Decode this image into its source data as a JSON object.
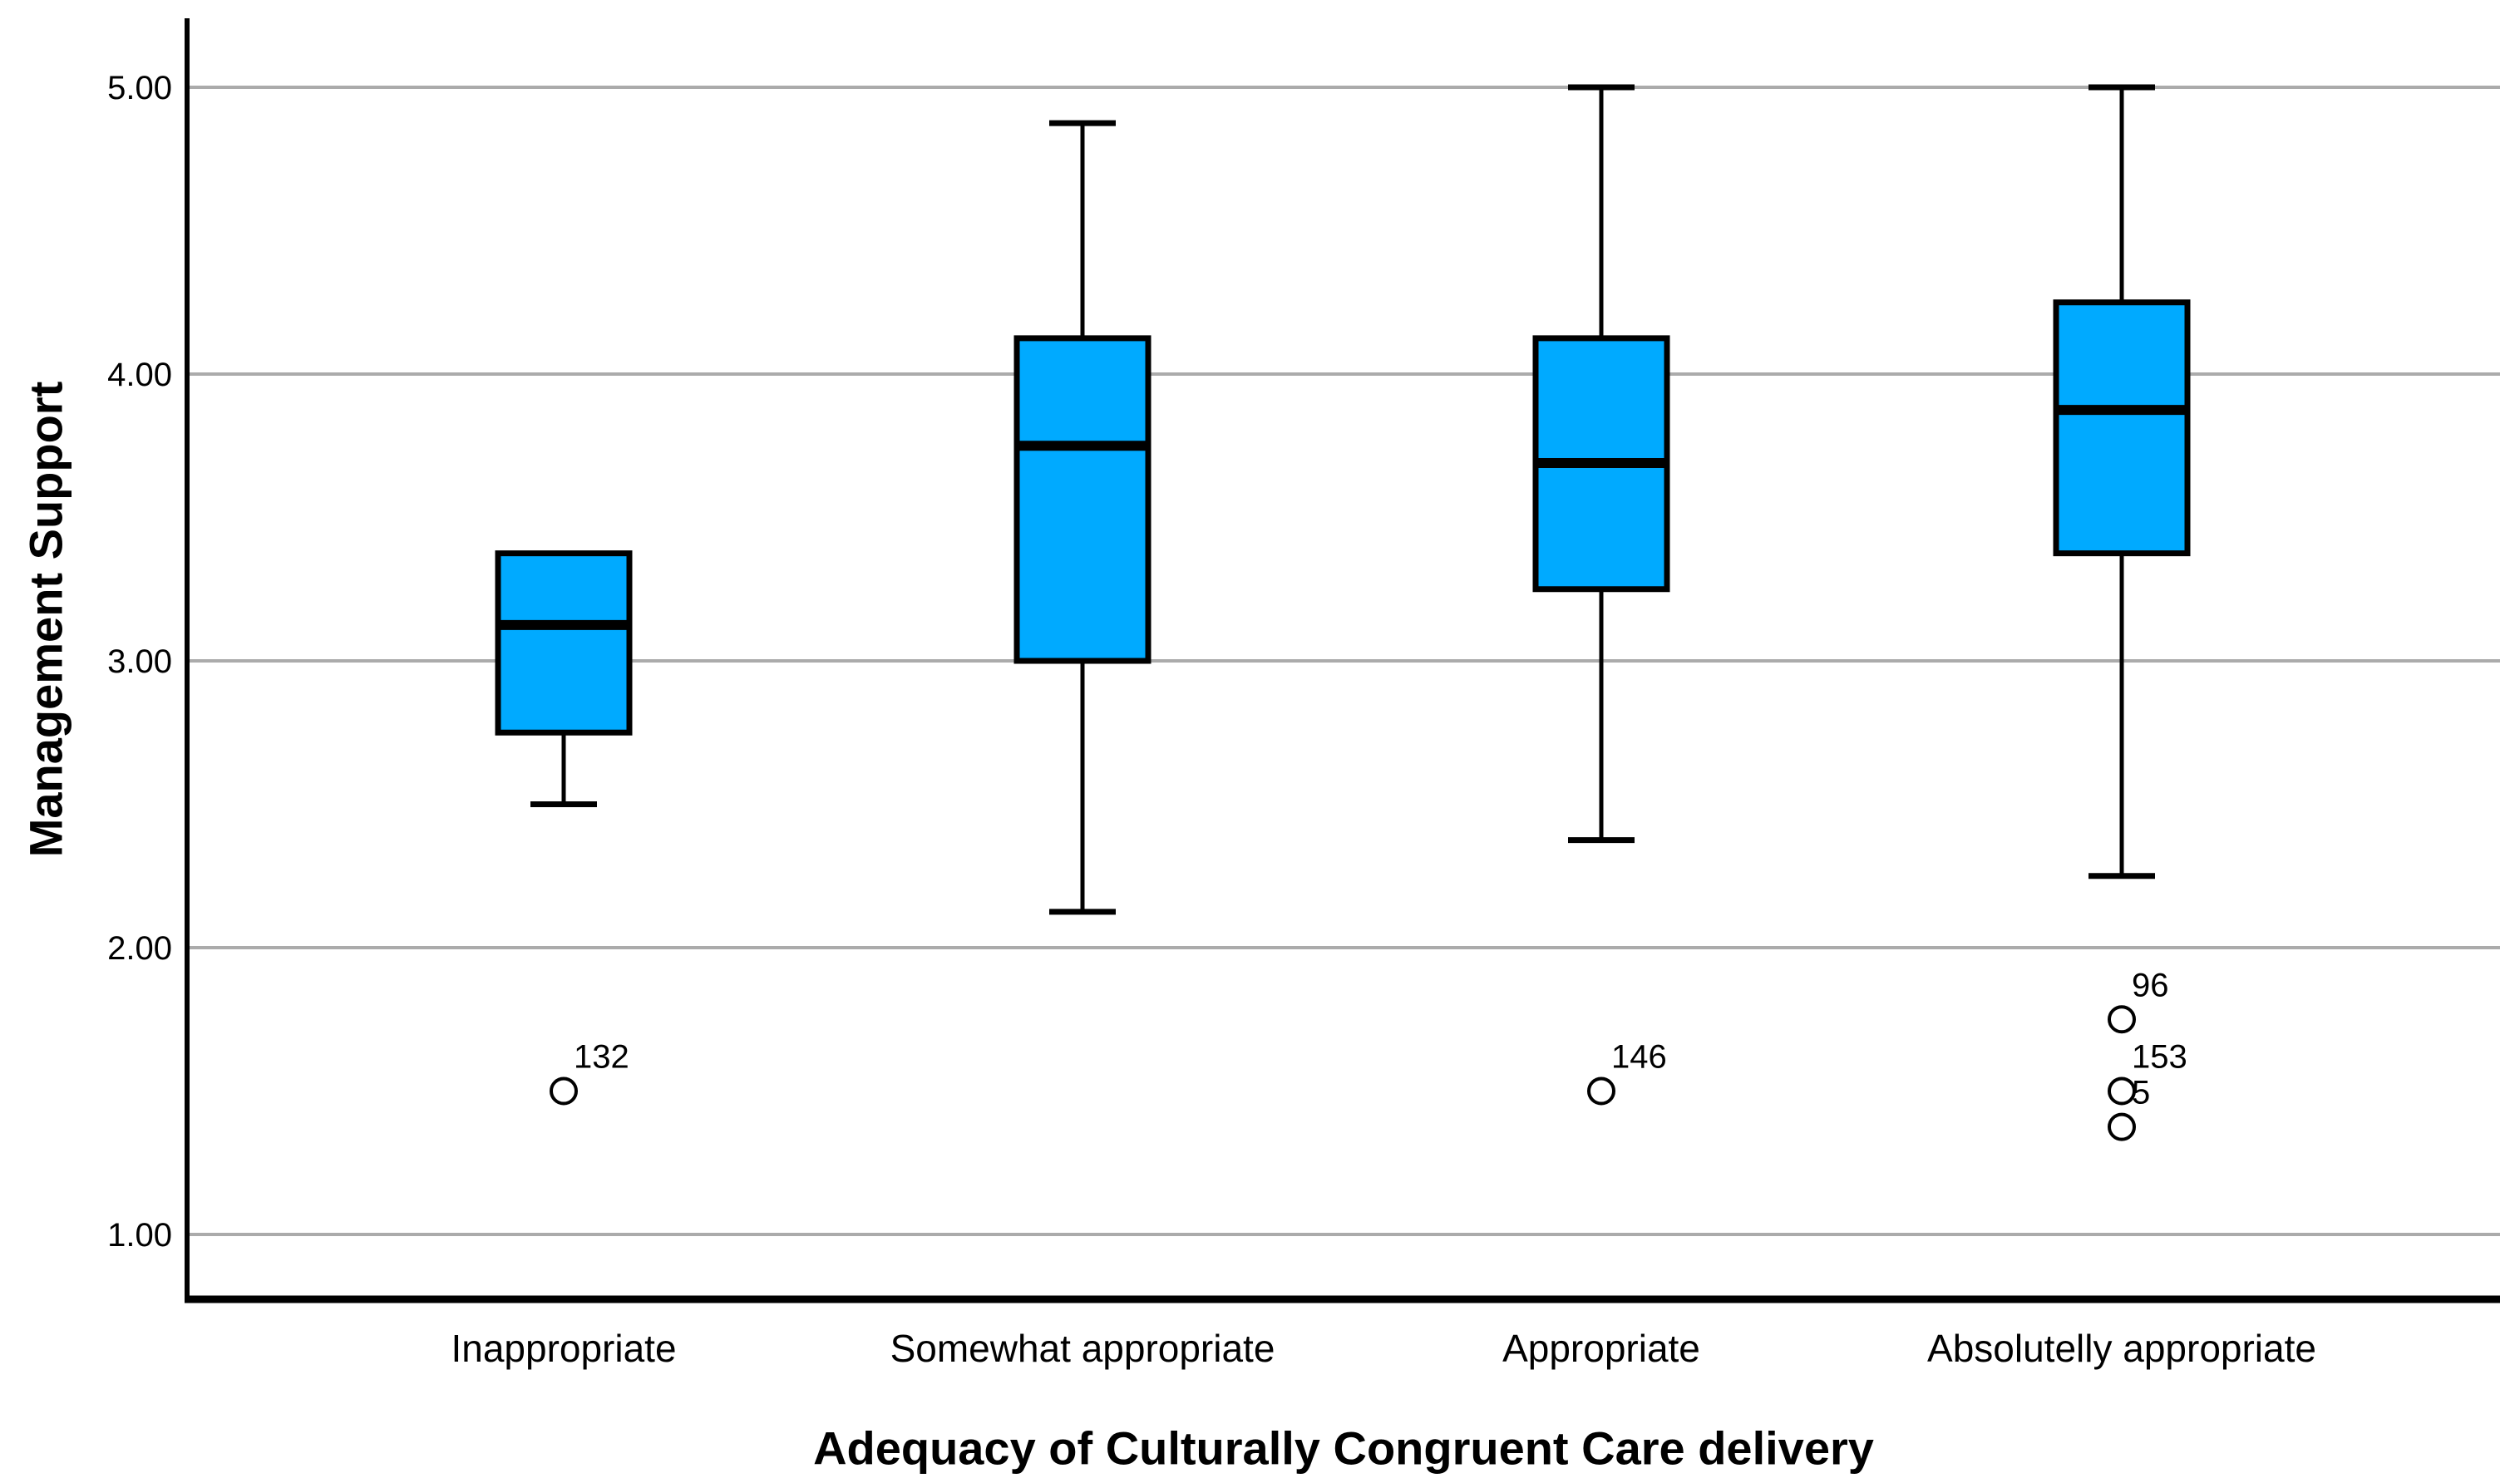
{
  "chart_data": {
    "type": "boxplot",
    "title": "",
    "xlabel": "Adequacy of Culturally Congruent Care delivery",
    "ylabel": "Management Support",
    "ylim": [
      1,
      5
    ],
    "grid": "horizontal",
    "legend": "none",
    "y_ticks": [
      {
        "value": 1,
        "label": "1.00"
      },
      {
        "value": 2,
        "label": "2.00"
      },
      {
        "value": 3,
        "label": "3.00"
      },
      {
        "value": 4,
        "label": "4.00"
      },
      {
        "value": 5,
        "label": "5.00"
      }
    ],
    "categories": [
      "Inappropriate",
      "Somewhat appropriate",
      "Appropriate",
      "Absolutelly appropriate"
    ],
    "series": [
      {
        "category": "Inappropriate",
        "whisker_low": 2.5,
        "q1": 2.75,
        "median": 3.125,
        "q3": 3.375,
        "whisker_high": 3.375,
        "outliers": [
          {
            "value": 1.5,
            "label": "132"
          }
        ]
      },
      {
        "category": "Somewhat appropriate",
        "whisker_low": 2.125,
        "q1": 3.0,
        "median": 3.75,
        "q3": 4.125,
        "whisker_high": 4.875,
        "outliers": []
      },
      {
        "category": "Appropriate",
        "whisker_low": 2.375,
        "q1": 3.25,
        "median": 3.69,
        "q3": 4.125,
        "whisker_high": 5.0,
        "outliers": [
          {
            "value": 1.5,
            "label": "146"
          }
        ]
      },
      {
        "category": "Absolutelly appropriate",
        "whisker_low": 2.25,
        "q1": 3.375,
        "median": 3.875,
        "q3": 4.25,
        "whisker_high": 5.0,
        "outliers": [
          {
            "value": 1.75,
            "label": "96"
          },
          {
            "value": 1.5,
            "label": "153"
          },
          {
            "value": 1.375,
            "label": "5"
          }
        ]
      }
    ],
    "colors": {
      "box_fill": "#00AAFF",
      "box_border": "#000000",
      "median": "#000000",
      "whisker": "#000000",
      "outlier_stroke": "#000000",
      "gridline": "#ABABAB",
      "axis": "#000000",
      "background": "#FFFFFF",
      "text": "#000000"
    }
  }
}
